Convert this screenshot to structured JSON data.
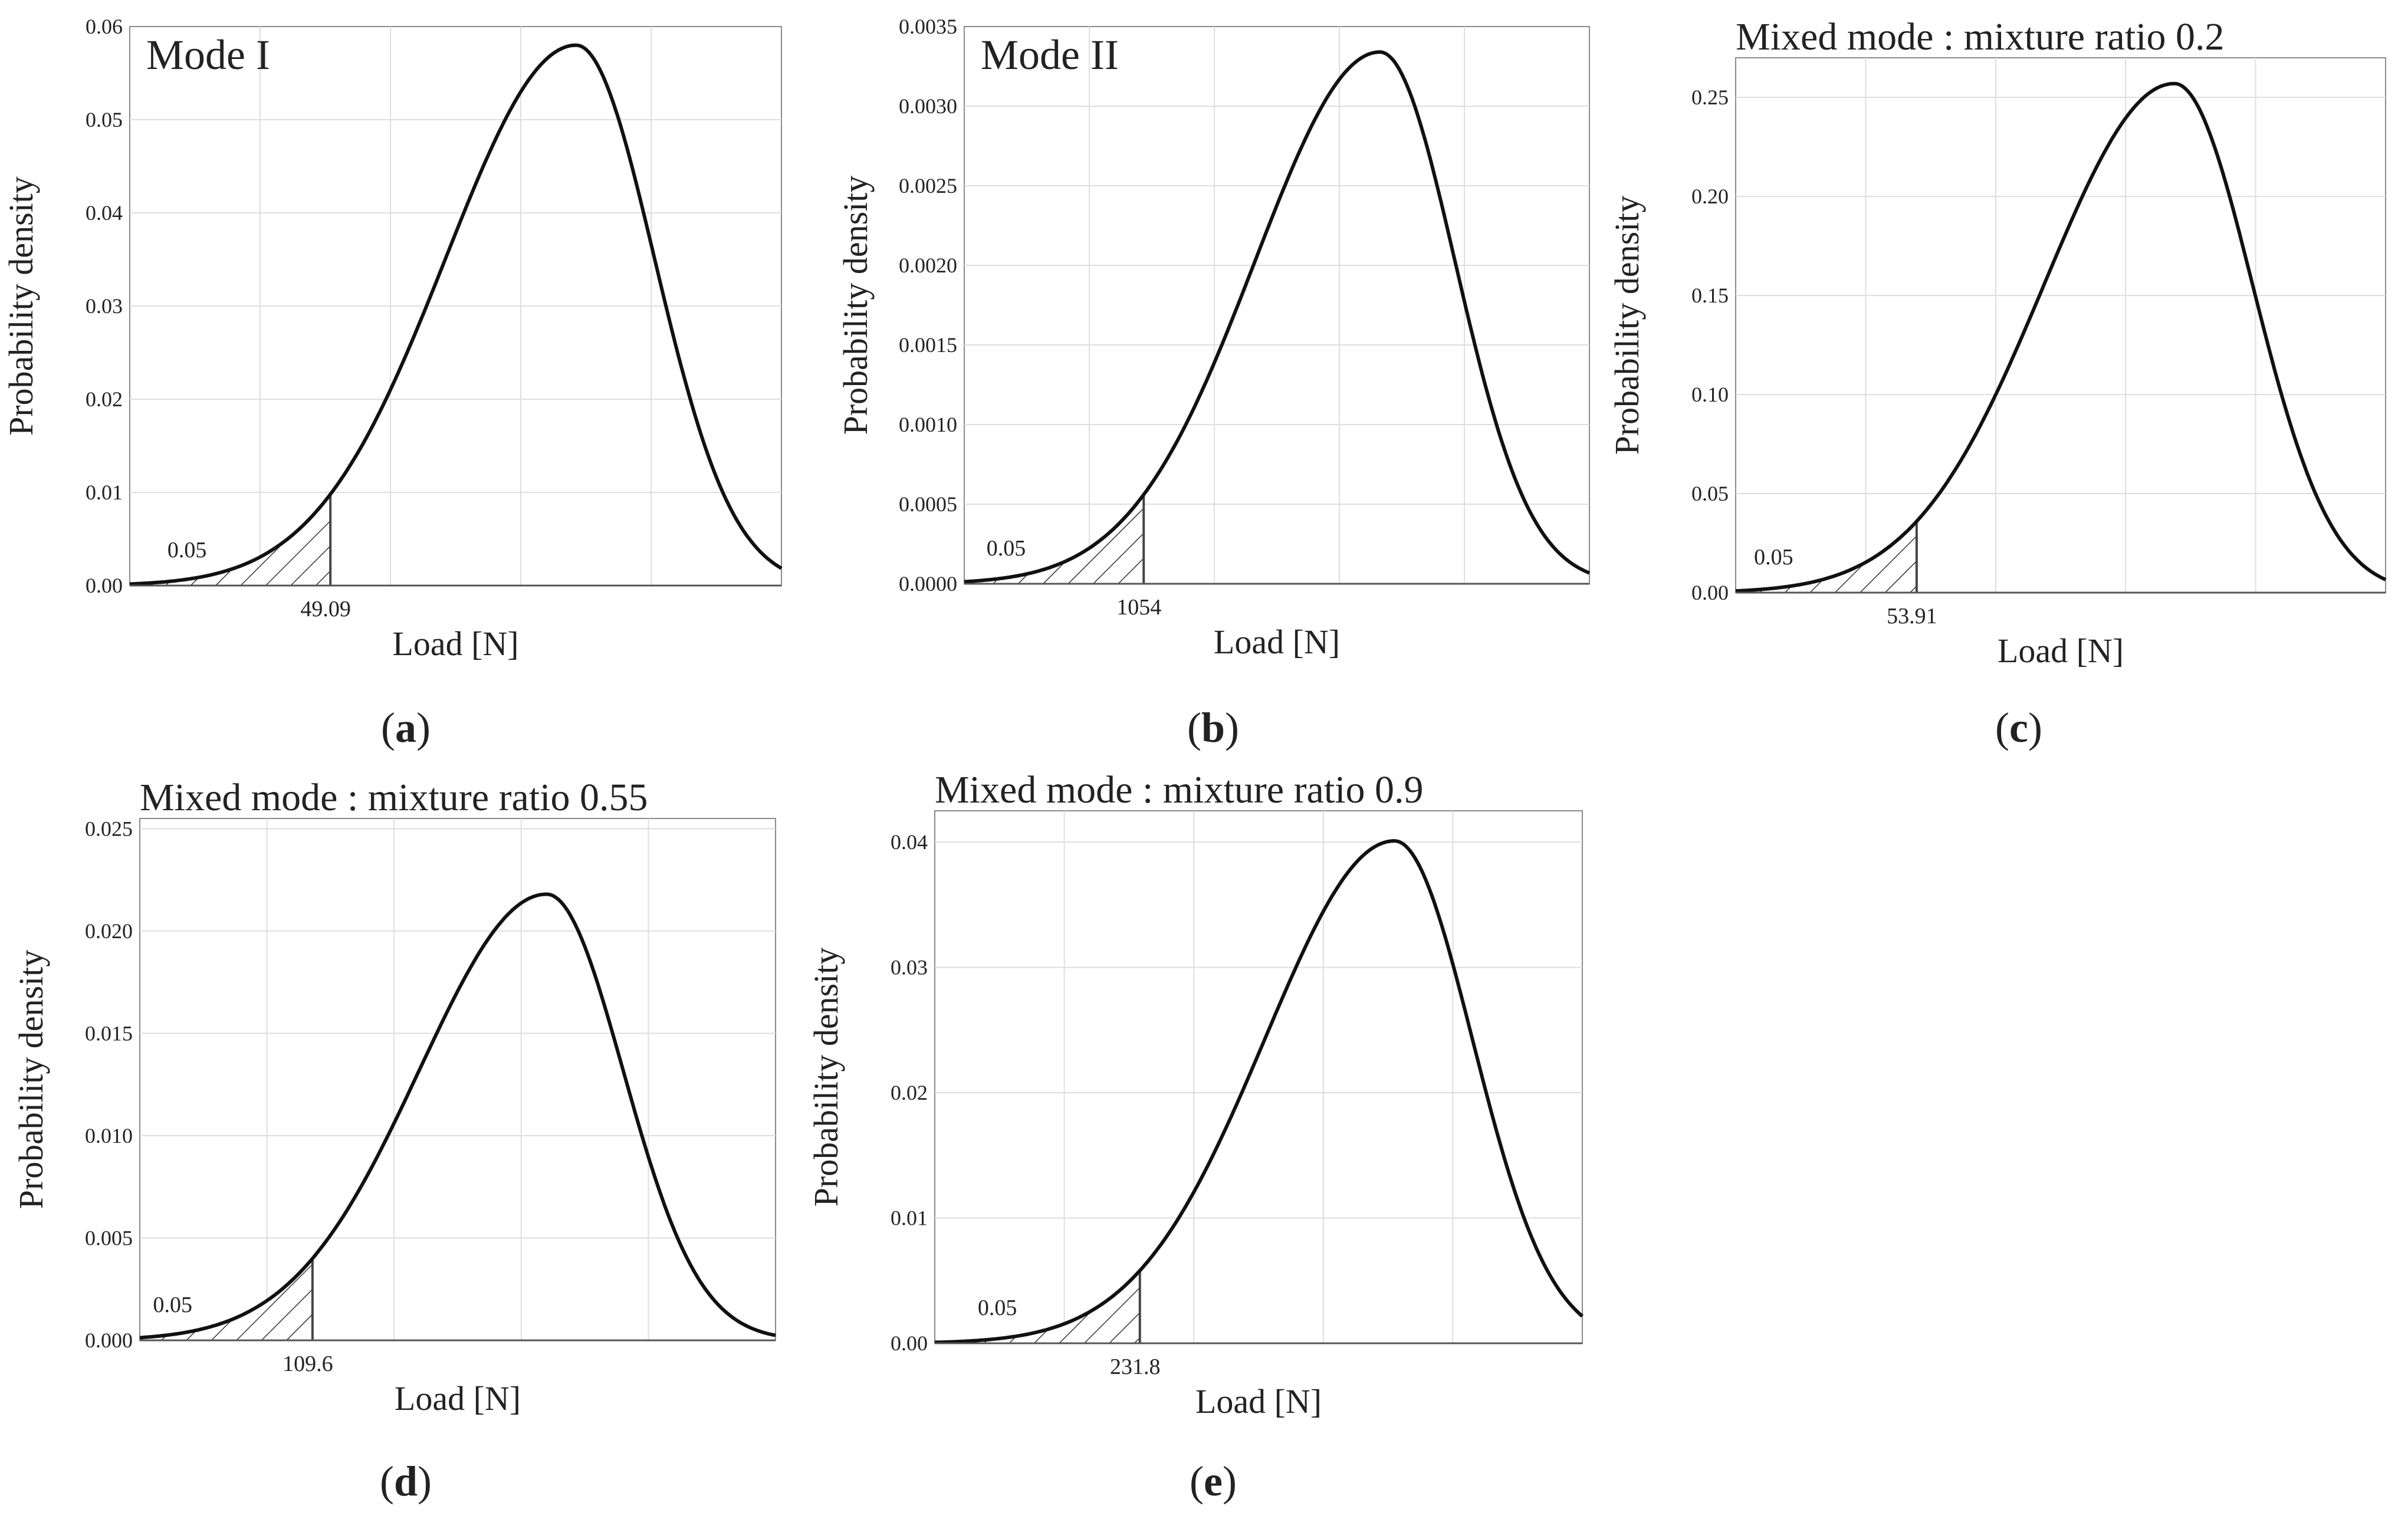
{
  "figure": {
    "panels": [
      {
        "id": "a",
        "label": "a"
      },
      {
        "id": "b",
        "label": "b"
      },
      {
        "id": "c",
        "label": "c"
      },
      {
        "id": "d",
        "label": "d"
      },
      {
        "id": "e",
        "label": "e"
      }
    ]
  },
  "chart_data": [
    {
      "type": "line",
      "panel": "a",
      "title": "Mode I",
      "title_position": "inside-top-left",
      "xlabel": "Load [N]",
      "ylabel": "Probability density",
      "ylim": [
        0,
        0.06
      ],
      "yticks": [
        0,
        0.01,
        0.02,
        0.03,
        0.04,
        0.05,
        0.06
      ],
      "ytick_labels": [
        "0.00",
        "0.01",
        "0.02",
        "0.03",
        "0.04",
        "0.05",
        "0.06"
      ],
      "xlim": [
        0,
        100
      ],
      "grid": true,
      "curve_shape": "left-skewed unimodal density",
      "peak_x": 68.5,
      "peak_density": 0.058,
      "critical_load": 49.09,
      "critical_label": "49.09",
      "tail_probability": 0.05,
      "tail_label": "0.05",
      "density_at_critical": 0.0098
    },
    {
      "type": "line",
      "panel": "b",
      "title": "Mode II",
      "title_position": "inside-top-left",
      "xlabel": "Load [N]",
      "ylabel": "Probability density",
      "ylim": [
        0,
        0.0035
      ],
      "yticks": [
        0,
        0.0005,
        0.001,
        0.0015,
        0.002,
        0.0025,
        0.003,
        0.0035
      ],
      "ytick_labels": [
        "0.0000",
        "0.0005",
        "0.0010",
        "0.0015",
        "0.0020",
        "0.0025",
        "0.0030",
        "0.0035"
      ],
      "xlim": [
        0,
        100
      ],
      "grid": true,
      "curve_shape": "left-skewed unimodal density",
      "peak_x": 66.5,
      "peak_density": 0.00334,
      "critical_load": 1054,
      "critical_label": "1054",
      "tail_probability": 0.05,
      "tail_label": "0.05",
      "density_at_critical": 0.00056
    },
    {
      "type": "line",
      "panel": "c",
      "title": "Mixed mode : mixture ratio 0.2",
      "title_position": "above",
      "xlabel": "Load [N]",
      "ylabel": "Probability density",
      "ylim": [
        0,
        0.27
      ],
      "yticks": [
        0,
        0.05,
        0.1,
        0.15,
        0.2,
        0.25
      ],
      "ytick_labels": [
        "0.00",
        "0.05",
        "0.10",
        "0.15",
        "0.20",
        "0.25"
      ],
      "xlim": [
        0,
        100
      ],
      "grid": true,
      "curve_shape": "left-skewed unimodal density",
      "peak_x": 67.5,
      "peak_density": 0.257,
      "critical_load": 53.91,
      "critical_label": "53.91",
      "tail_probability": 0.05,
      "tail_label": "0.05",
      "density_at_critical": 0.036
    },
    {
      "type": "line",
      "panel": "d",
      "title": "Mixed mode : mixture ratio 0.55",
      "title_position": "above",
      "xlabel": "Load [N]",
      "ylabel": "Probability density",
      "ylim": [
        0,
        0.0255
      ],
      "yticks": [
        0,
        0.005,
        0.01,
        0.015,
        0.02,
        0.025
      ],
      "ytick_labels": [
        "0.000",
        "0.005",
        "0.010",
        "0.015",
        "0.020",
        "0.025"
      ],
      "xlim": [
        0,
        100
      ],
      "grid": true,
      "curve_shape": "left-skewed unimodal density",
      "peak_x": 64,
      "peak_density": 0.0218,
      "critical_load": 109.6,
      "critical_label": "109.6",
      "tail_probability": 0.05,
      "tail_label": "0.05",
      "density_at_critical": 0.004
    },
    {
      "type": "line",
      "panel": "e",
      "title": "Mixed mode : mixture ratio 0.9",
      "title_position": "above",
      "xlabel": "Load [N]",
      "ylabel": "Probability density",
      "ylim": [
        0,
        0.0425
      ],
      "yticks": [
        0,
        0.01,
        0.02,
        0.03,
        0.04
      ],
      "ytick_labels": [
        "0.00",
        "0.01",
        "0.02",
        "0.03",
        "0.04"
      ],
      "xlim": [
        0,
        100
      ],
      "grid": true,
      "curve_shape": "left-skewed unimodal density",
      "peak_x": 71,
      "peak_density": 0.0401,
      "critical_load": 231.8,
      "critical_label": "231.8",
      "tail_probability": 0.05,
      "tail_label": "0.05",
      "density_at_critical": 0.0058
    }
  ]
}
